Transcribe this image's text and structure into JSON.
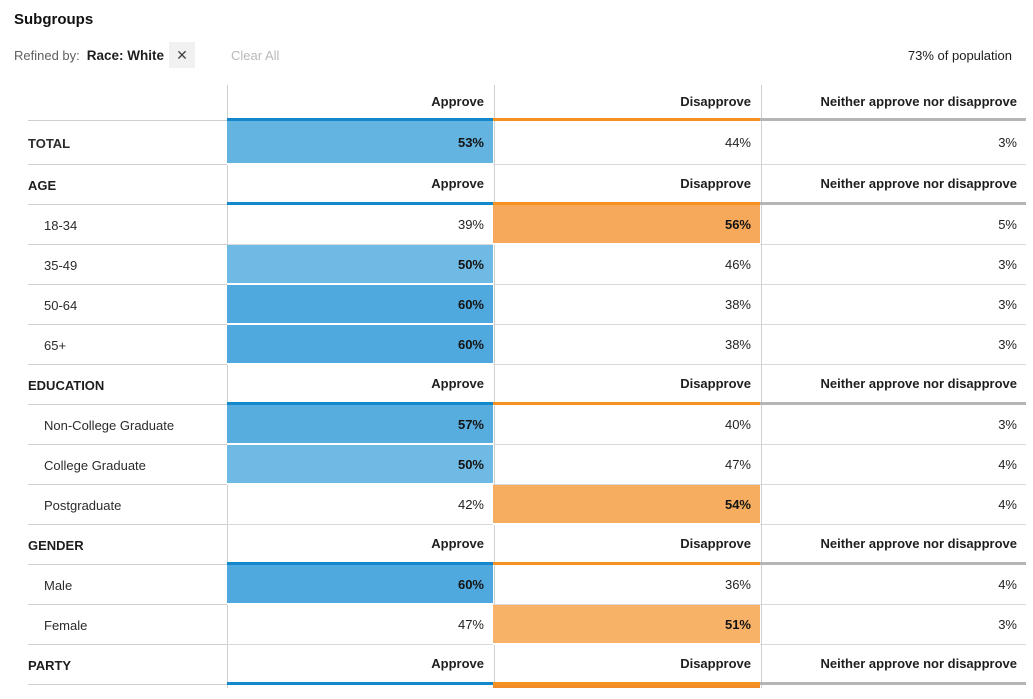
{
  "header": {
    "title": "Subgroups",
    "refined_by_label": "Refined by:",
    "filter_chip": {
      "label": "Race: White",
      "remove_icon_glyph": "✕",
      "remove_icon": "x-close-icon"
    },
    "clear_all_label": "Clear All",
    "population_label": "73% of population"
  },
  "columns": [
    "Approve",
    "Disapprove",
    "Neither approve nor disapprove"
  ],
  "colors": {
    "approve_line": "#1287CB",
    "disapprove_line": "#F5911E",
    "neither_line": "#B5B5B5",
    "divider": "#d9d9d9",
    "separator": "#cfcfcf"
  },
  "chart_data": {
    "type": "table",
    "title": "Subgroups",
    "filter": "Race: White",
    "population_share_percent": 73,
    "columns": [
      "Approve",
      "Disapprove",
      "Neither approve nor disapprove"
    ],
    "rows": [
      {
        "group": "TOTAL",
        "category": "TOTAL",
        "approve": 53,
        "disapprove": 44,
        "neither": 3,
        "highlighted": "approve"
      },
      {
        "group": "AGE",
        "category": "18-34",
        "approve": 39,
        "disapprove": 56,
        "neither": 5,
        "highlighted": "disapprove"
      },
      {
        "group": "AGE",
        "category": "35-49",
        "approve": 50,
        "disapprove": 46,
        "neither": 3,
        "highlighted": "approve"
      },
      {
        "group": "AGE",
        "category": "50-64",
        "approve": 60,
        "disapprove": 38,
        "neither": 3,
        "highlighted": "approve"
      },
      {
        "group": "AGE",
        "category": "65+",
        "approve": 60,
        "disapprove": 38,
        "neither": 3,
        "highlighted": "approve"
      },
      {
        "group": "EDUCATION",
        "category": "Non-College Graduate",
        "approve": 57,
        "disapprove": 40,
        "neither": 3,
        "highlighted": "approve"
      },
      {
        "group": "EDUCATION",
        "category": "College Graduate",
        "approve": 50,
        "disapprove": 47,
        "neither": 4,
        "highlighted": "approve"
      },
      {
        "group": "EDUCATION",
        "category": "Postgraduate",
        "approve": 42,
        "disapprove": 54,
        "neither": 4,
        "highlighted": "disapprove"
      },
      {
        "group": "GENDER",
        "category": "Male",
        "approve": 60,
        "disapprove": 36,
        "neither": 4,
        "highlighted": "approve"
      },
      {
        "group": "GENDER",
        "category": "Female",
        "approve": 47,
        "disapprove": 51,
        "neither": 3,
        "highlighted": "disapprove"
      },
      {
        "group": "PARTY",
        "category": null,
        "approve": null,
        "disapprove": null,
        "neither": null,
        "highlighted": "disapprove"
      }
    ]
  },
  "table": {
    "rows": [
      {
        "type": "colhead"
      },
      {
        "type": "data",
        "label": "TOTAL",
        "bold_label": true,
        "indent": false,
        "size": "tall",
        "cells": [
          {
            "v": "53%",
            "fill": "#64B4E2"
          },
          {
            "v": "44%"
          },
          {
            "v": "3%"
          }
        ]
      },
      {
        "type": "section",
        "label": "AGE"
      },
      {
        "type": "data",
        "label": "18-34",
        "indent": true,
        "cells": [
          {
            "v": "39%"
          },
          {
            "v": "56%",
            "fill": "#F6A95A"
          },
          {
            "v": "5%"
          }
        ]
      },
      {
        "type": "data",
        "label": "35-49",
        "indent": true,
        "cells": [
          {
            "v": "50%",
            "fill": "#6FB9E5"
          },
          {
            "v": "46%"
          },
          {
            "v": "3%"
          }
        ]
      },
      {
        "type": "data",
        "label": "50-64",
        "indent": true,
        "cells": [
          {
            "v": "60%",
            "fill": "#4FA9DE"
          },
          {
            "v": "38%"
          },
          {
            "v": "3%"
          }
        ]
      },
      {
        "type": "data",
        "label": "65+",
        "indent": true,
        "cells": [
          {
            "v": "60%",
            "fill": "#4FA9DE"
          },
          {
            "v": "38%"
          },
          {
            "v": "3%"
          }
        ]
      },
      {
        "type": "section",
        "label": "EDUCATION"
      },
      {
        "type": "data",
        "label": "Non-College Graduate",
        "indent": true,
        "cells": [
          {
            "v": "57%",
            "fill": "#58ADDF"
          },
          {
            "v": "40%"
          },
          {
            "v": "3%"
          }
        ]
      },
      {
        "type": "data",
        "label": "College Graduate",
        "indent": true,
        "cells": [
          {
            "v": "50%",
            "fill": "#6FB9E5"
          },
          {
            "v": "47%"
          },
          {
            "v": "4%"
          }
        ]
      },
      {
        "type": "data",
        "label": "Postgraduate",
        "indent": true,
        "cells": [
          {
            "v": "42%"
          },
          {
            "v": "54%",
            "fill": "#F7AD60"
          },
          {
            "v": "4%"
          }
        ]
      },
      {
        "type": "section",
        "label": "GENDER"
      },
      {
        "type": "data",
        "label": "Male",
        "indent": true,
        "cells": [
          {
            "v": "60%",
            "fill": "#4FA9DE"
          },
          {
            "v": "36%"
          },
          {
            "v": "4%"
          }
        ]
      },
      {
        "type": "data",
        "label": "Female",
        "indent": true,
        "cells": [
          {
            "v": "47%"
          },
          {
            "v": "51%",
            "fill": "#F8B268"
          },
          {
            "v": "3%"
          }
        ]
      },
      {
        "type": "section",
        "label": "PARTY"
      },
      {
        "type": "cutoff",
        "cells": [
          {},
          {
            "fill": "#F18A28"
          },
          {}
        ]
      }
    ]
  }
}
